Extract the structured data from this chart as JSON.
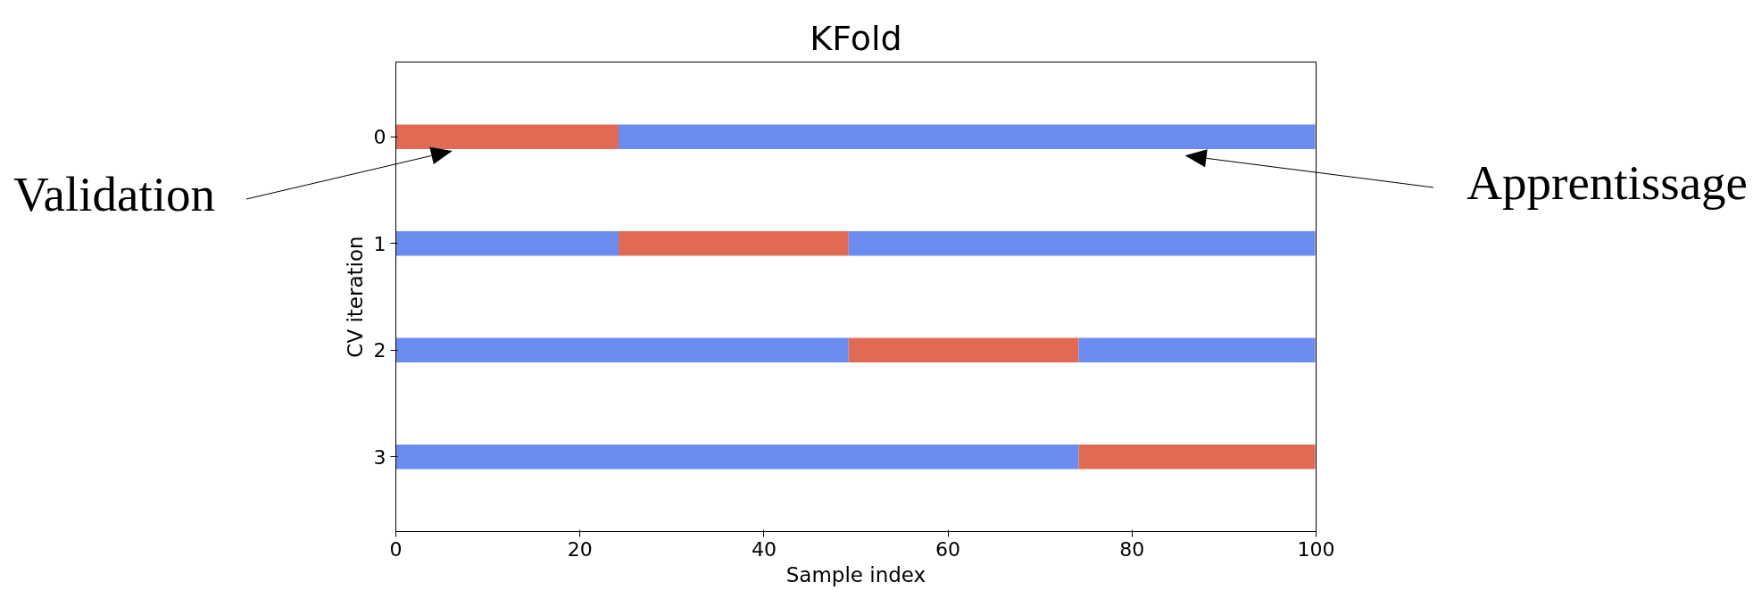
{
  "chart_data": {
    "type": "bar",
    "orientation": "horizontal",
    "title": "KFold",
    "xlabel": "Sample index",
    "ylabel": "CV iteration",
    "categories": [
      "0",
      "1",
      "2",
      "3"
    ],
    "series": [
      {
        "color": "#6a8bef",
        "base": [
          null,
          0,
          0,
          0
        ],
        "values": [
          null,
          24.2,
          49.2,
          74.2
        ]
      },
      {
        "color": "#e16a54",
        "base": [
          0,
          24.2,
          49.2,
          74.2
        ],
        "values": [
          24.2,
          25,
          25,
          25.7
        ]
      },
      {
        "color": "#6a8bef",
        "base": [
          24.2,
          49.2,
          74.2,
          null
        ],
        "values": [
          75.7,
          50.7,
          25.7,
          null
        ]
      }
    ],
    "xlim": [
      0,
      100
    ],
    "xticks": [
      0,
      20,
      40,
      60,
      80,
      100
    ],
    "annotations": [
      "Validation",
      "Apprentissage"
    ],
    "grid": false
  }
}
